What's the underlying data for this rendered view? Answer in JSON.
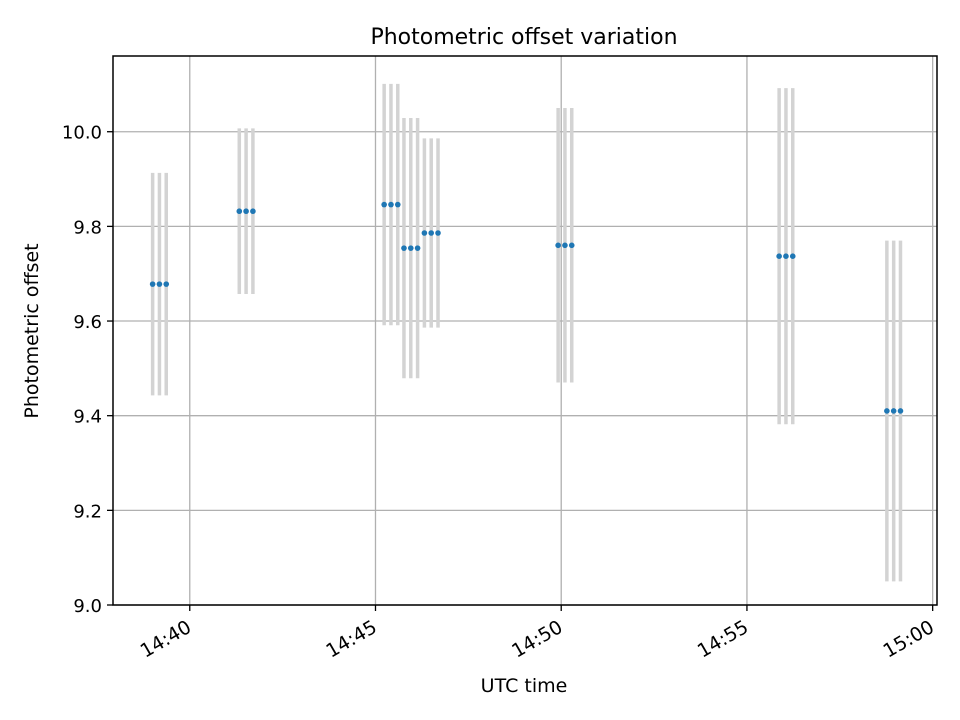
{
  "chart_data": {
    "type": "scatter",
    "title": "Photometric offset variation",
    "xlabel": "UTC time",
    "ylabel": "Photometric offset",
    "x_unit": "time of day (HH:MM:SS, UTC)",
    "xlim": [
      "14:37:56",
      "15:00:07"
    ],
    "ylim": [
      9.0,
      10.16
    ],
    "xticks": [
      {
        "t": "14:40:00",
        "label": "14:40"
      },
      {
        "t": "14:45:00",
        "label": "14:45"
      },
      {
        "t": "14:50:00",
        "label": "14:50"
      },
      {
        "t": "14:55:00",
        "label": "14:55"
      },
      {
        "t": "15:00:00",
        "label": "15:00"
      }
    ],
    "yticks": [
      {
        "v": 9.0,
        "label": "9.0"
      },
      {
        "v": 9.2,
        "label": "9.2"
      },
      {
        "v": 9.4,
        "label": "9.4"
      },
      {
        "v": 9.6,
        "label": "9.6"
      },
      {
        "v": 9.8,
        "label": "9.8"
      },
      {
        "v": 10.0,
        "label": "10.0"
      }
    ],
    "grid": true,
    "point_color": "#1f77b4",
    "errorbar_color": "#d3d3d3",
    "points": [
      {
        "t": "14:39:00",
        "y": 9.678,
        "err": 0.235
      },
      {
        "t": "14:39:11",
        "y": 9.678,
        "err": 0.235
      },
      {
        "t": "14:39:22",
        "y": 9.678,
        "err": 0.235
      },
      {
        "t": "14:41:20",
        "y": 9.832,
        "err": 0.175
      },
      {
        "t": "14:41:31",
        "y": 9.832,
        "err": 0.175
      },
      {
        "t": "14:41:42",
        "y": 9.832,
        "err": 0.175
      },
      {
        "t": "14:45:14",
        "y": 9.846,
        "err": 0.255
      },
      {
        "t": "14:45:25",
        "y": 9.846,
        "err": 0.255
      },
      {
        "t": "14:45:36",
        "y": 9.846,
        "err": 0.255
      },
      {
        "t": "14:45:46",
        "y": 9.754,
        "err": 0.275
      },
      {
        "t": "14:45:57",
        "y": 9.754,
        "err": 0.275
      },
      {
        "t": "14:46:08",
        "y": 9.754,
        "err": 0.275
      },
      {
        "t": "14:46:19",
        "y": 9.786,
        "err": 0.2
      },
      {
        "t": "14:46:30",
        "y": 9.786,
        "err": 0.2
      },
      {
        "t": "14:46:41",
        "y": 9.786,
        "err": 0.2
      },
      {
        "t": "14:49:55",
        "y": 9.76,
        "err": 0.29
      },
      {
        "t": "14:50:06",
        "y": 9.76,
        "err": 0.29
      },
      {
        "t": "14:50:17",
        "y": 9.76,
        "err": 0.29
      },
      {
        "t": "14:55:52",
        "y": 9.737,
        "err": 0.355
      },
      {
        "t": "14:56:03",
        "y": 9.737,
        "err": 0.355
      },
      {
        "t": "14:56:14",
        "y": 9.737,
        "err": 0.355
      },
      {
        "t": "14:58:46",
        "y": 9.41,
        "err": 0.36
      },
      {
        "t": "14:58:57",
        "y": 9.41,
        "err": 0.36
      },
      {
        "t": "14:59:08",
        "y": 9.41,
        "err": 0.36
      }
    ]
  }
}
